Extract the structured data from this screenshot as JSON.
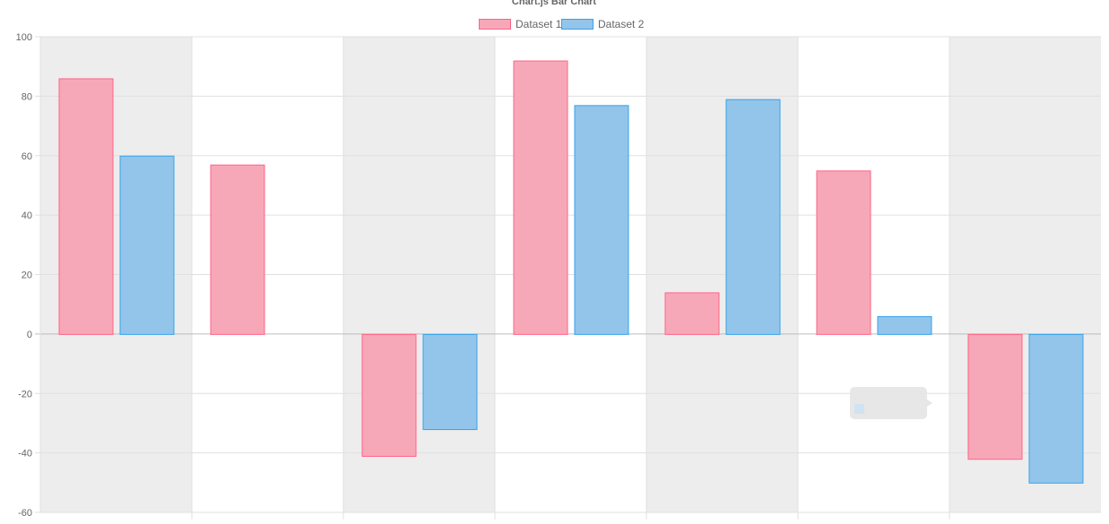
{
  "chart_data": {
    "type": "bar",
    "title": "Chart.js Bar Chart",
    "legend": {
      "position": "top"
    },
    "series": [
      {
        "name": "Dataset 1",
        "values": [
          86,
          57,
          -41,
          92,
          14,
          55,
          -42
        ],
        "fill": "#f7a8b8",
        "stroke": "#ff6384"
      },
      {
        "name": "Dataset 2",
        "values": [
          60,
          null,
          -32,
          77,
          79,
          6,
          -50
        ],
        "fill": "#93c5ea",
        "stroke": "#36a2eb"
      }
    ],
    "categories_count": 7,
    "yticks": [
      "100",
      "80",
      "60",
      "40",
      "20",
      "0",
      "-20",
      "-40",
      "-60"
    ],
    "ylim": [
      -60,
      100
    ],
    "grid": true,
    "colors": {
      "band": "#ededed",
      "grid": "#e0e0e0",
      "axis": "#999999"
    }
  }
}
